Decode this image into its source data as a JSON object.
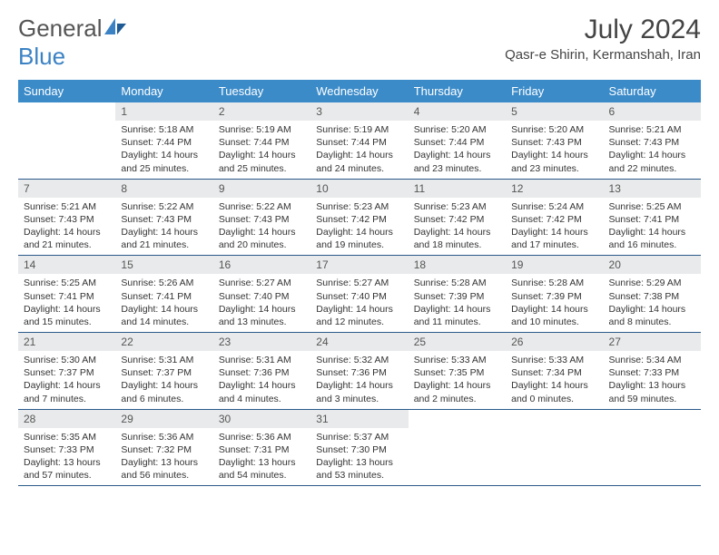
{
  "brand": {
    "part1": "General",
    "part2": "Blue"
  },
  "title": "July 2024",
  "location": "Qasr-e Shirin, Kermanshah, Iran",
  "weekdays": [
    "Sunday",
    "Monday",
    "Tuesday",
    "Wednesday",
    "Thursday",
    "Friday",
    "Saturday"
  ],
  "colors": {
    "header_bg": "#3b8bc9",
    "header_text": "#ffffff",
    "daynum_bg": "#e9eaeb",
    "row_border": "#2b5a8a",
    "brand_blue": "#3b82c4"
  },
  "grid": [
    [
      null,
      {
        "n": "1",
        "sr": "5:18 AM",
        "ss": "7:44 PM",
        "dl": "14 hours and 25 minutes."
      },
      {
        "n": "2",
        "sr": "5:19 AM",
        "ss": "7:44 PM",
        "dl": "14 hours and 25 minutes."
      },
      {
        "n": "3",
        "sr": "5:19 AM",
        "ss": "7:44 PM",
        "dl": "14 hours and 24 minutes."
      },
      {
        "n": "4",
        "sr": "5:20 AM",
        "ss": "7:44 PM",
        "dl": "14 hours and 23 minutes."
      },
      {
        "n": "5",
        "sr": "5:20 AM",
        "ss": "7:43 PM",
        "dl": "14 hours and 23 minutes."
      },
      {
        "n": "6",
        "sr": "5:21 AM",
        "ss": "7:43 PM",
        "dl": "14 hours and 22 minutes."
      }
    ],
    [
      {
        "n": "7",
        "sr": "5:21 AM",
        "ss": "7:43 PM",
        "dl": "14 hours and 21 minutes."
      },
      {
        "n": "8",
        "sr": "5:22 AM",
        "ss": "7:43 PM",
        "dl": "14 hours and 21 minutes."
      },
      {
        "n": "9",
        "sr": "5:22 AM",
        "ss": "7:43 PM",
        "dl": "14 hours and 20 minutes."
      },
      {
        "n": "10",
        "sr": "5:23 AM",
        "ss": "7:42 PM",
        "dl": "14 hours and 19 minutes."
      },
      {
        "n": "11",
        "sr": "5:23 AM",
        "ss": "7:42 PM",
        "dl": "14 hours and 18 minutes."
      },
      {
        "n": "12",
        "sr": "5:24 AM",
        "ss": "7:42 PM",
        "dl": "14 hours and 17 minutes."
      },
      {
        "n": "13",
        "sr": "5:25 AM",
        "ss": "7:41 PM",
        "dl": "14 hours and 16 minutes."
      }
    ],
    [
      {
        "n": "14",
        "sr": "5:25 AM",
        "ss": "7:41 PM",
        "dl": "14 hours and 15 minutes."
      },
      {
        "n": "15",
        "sr": "5:26 AM",
        "ss": "7:41 PM",
        "dl": "14 hours and 14 minutes."
      },
      {
        "n": "16",
        "sr": "5:27 AM",
        "ss": "7:40 PM",
        "dl": "14 hours and 13 minutes."
      },
      {
        "n": "17",
        "sr": "5:27 AM",
        "ss": "7:40 PM",
        "dl": "14 hours and 12 minutes."
      },
      {
        "n": "18",
        "sr": "5:28 AM",
        "ss": "7:39 PM",
        "dl": "14 hours and 11 minutes."
      },
      {
        "n": "19",
        "sr": "5:28 AM",
        "ss": "7:39 PM",
        "dl": "14 hours and 10 minutes."
      },
      {
        "n": "20",
        "sr": "5:29 AM",
        "ss": "7:38 PM",
        "dl": "14 hours and 8 minutes."
      }
    ],
    [
      {
        "n": "21",
        "sr": "5:30 AM",
        "ss": "7:37 PM",
        "dl": "14 hours and 7 minutes."
      },
      {
        "n": "22",
        "sr": "5:31 AM",
        "ss": "7:37 PM",
        "dl": "14 hours and 6 minutes."
      },
      {
        "n": "23",
        "sr": "5:31 AM",
        "ss": "7:36 PM",
        "dl": "14 hours and 4 minutes."
      },
      {
        "n": "24",
        "sr": "5:32 AM",
        "ss": "7:36 PM",
        "dl": "14 hours and 3 minutes."
      },
      {
        "n": "25",
        "sr": "5:33 AM",
        "ss": "7:35 PM",
        "dl": "14 hours and 2 minutes."
      },
      {
        "n": "26",
        "sr": "5:33 AM",
        "ss": "7:34 PM",
        "dl": "14 hours and 0 minutes."
      },
      {
        "n": "27",
        "sr": "5:34 AM",
        "ss": "7:33 PM",
        "dl": "13 hours and 59 minutes."
      }
    ],
    [
      {
        "n": "28",
        "sr": "5:35 AM",
        "ss": "7:33 PM",
        "dl": "13 hours and 57 minutes."
      },
      {
        "n": "29",
        "sr": "5:36 AM",
        "ss": "7:32 PM",
        "dl": "13 hours and 56 minutes."
      },
      {
        "n": "30",
        "sr": "5:36 AM",
        "ss": "7:31 PM",
        "dl": "13 hours and 54 minutes."
      },
      {
        "n": "31",
        "sr": "5:37 AM",
        "ss": "7:30 PM",
        "dl": "13 hours and 53 minutes."
      },
      null,
      null,
      null
    ]
  ],
  "labels": {
    "sunrise": "Sunrise:",
    "sunset": "Sunset:",
    "daylight": "Daylight:"
  }
}
